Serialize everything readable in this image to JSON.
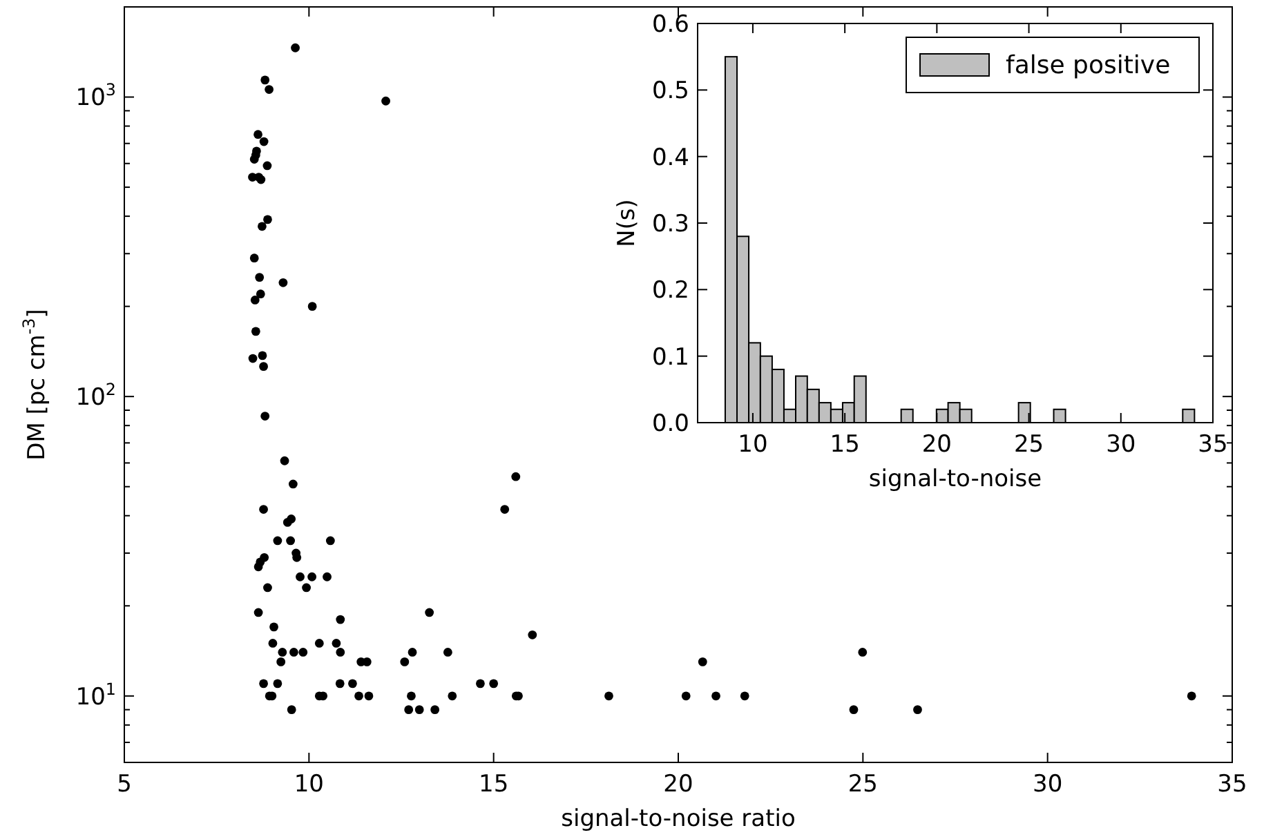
{
  "chart_data": [
    {
      "type": "scatter",
      "xlabel": "signal-to-noise ratio",
      "ylabel": "DM [pc cm$^{-3}$]",
      "log": "y",
      "marker": "circle",
      "grid": false,
      "legend": false,
      "xlim": [
        5,
        35
      ],
      "xticks": [
        5,
        10,
        15,
        20,
        25,
        30,
        35
      ],
      "ylim": [
        6,
        2000
      ],
      "yticks": [
        {
          "value": 6,
          "label": null
        },
        {
          "value": 7,
          "label": null
        },
        {
          "value": 8,
          "label": null
        },
        {
          "value": 9,
          "label": null
        },
        {
          "value": 10,
          "label": "10$^{1}$"
        },
        {
          "value": 20,
          "label": null
        },
        {
          "value": 30,
          "label": null
        },
        {
          "value": 40,
          "label": null
        },
        {
          "value": 50,
          "label": null
        },
        {
          "value": 60,
          "label": null
        },
        {
          "value": 70,
          "label": null
        },
        {
          "value": 80,
          "label": null
        },
        {
          "value": 90,
          "label": null
        },
        {
          "value": 100,
          "label": "10$^{2}$"
        },
        {
          "value": 200,
          "label": null
        },
        {
          "value": 300,
          "label": null
        },
        {
          "value": 400,
          "label": null
        },
        {
          "value": 500,
          "label": null
        },
        {
          "value": 600,
          "label": null
        },
        {
          "value": 700,
          "label": null
        },
        {
          "value": 800,
          "label": null
        },
        {
          "value": 900,
          "label": null
        },
        {
          "value": 1000,
          "label": "10$^{3}$"
        },
        {
          "value": 2000,
          "label": null
        }
      ],
      "series": [
        {
          "color": "#000000",
          "x": [
            9.63,
            8.81,
            8.92,
            12.08,
            8.62,
            8.78,
            8.58,
            8.56,
            8.52,
            8.87,
            8.47,
            8.64,
            8.7,
            8.88,
            8.73,
            8.52,
            8.66,
            9.3,
            8.69,
            8.54,
            10.09,
            8.56,
            8.48,
            8.74,
            8.77,
            8.81,
            9.34,
            9.57,
            8.77,
            9.42,
            9.52,
            9.15,
            9.5,
            10.58,
            9.65,
            9.67,
            8.63,
            8.68,
            8.79,
            9.76,
            10.08,
            10.49,
            9.93,
            8.88,
            8.63,
            10.85,
            9.05,
            9.02,
            10.28,
            10.74,
            9.28,
            9.59,
            9.84,
            10.85,
            9.24,
            11.41,
            11.57,
            8.77,
            9.15,
            10.84,
            11.18,
            8.93,
            9.0,
            10.28,
            10.38,
            11.35,
            11.62,
            9.53,
            12.59,
            12.8,
            13.26,
            12.77,
            12.7,
            12.99,
            13.41,
            13.76,
            13.88,
            14.64,
            15.0,
            15.61,
            15.67,
            16.05,
            18.12,
            20.21,
            20.66,
            21.02,
            21.8,
            24.75,
            24.99,
            26.48,
            33.9,
            15.3,
            15.6
          ],
          "values": [
            1460,
            1140,
            1060,
            970,
            750,
            710,
            660,
            640,
            620,
            590,
            540,
            540,
            530,
            390,
            370,
            290,
            250,
            240,
            220,
            210,
            200,
            165,
            134,
            137,
            126,
            86,
            61,
            51,
            42,
            38,
            39,
            33,
            33,
            33,
            30,
            29,
            27,
            28,
            29,
            25,
            25,
            25,
            23,
            23,
            19,
            18,
            17,
            15,
            15,
            15,
            14,
            14,
            14,
            14,
            13,
            13,
            13,
            11,
            11,
            11,
            11,
            10,
            10,
            10,
            10,
            10,
            10,
            9,
            13,
            14,
            19,
            10,
            9,
            9,
            9,
            14,
            10,
            11,
            11,
            10,
            10,
            16,
            10,
            10,
            13,
            10,
            10,
            9,
            14,
            9,
            10,
            42,
            54
          ]
        }
      ]
    },
    {
      "type": "histogram",
      "xlabel": "signal-to-noise",
      "ylabel": "N(s)",
      "legend": "top right",
      "grid": false,
      "xlim": [
        7,
        35
      ],
      "xticks": [
        10,
        15,
        20,
        25,
        30,
        35
      ],
      "ylim": [
        0,
        0.6
      ],
      "yticks": [
        {
          "value": 0,
          "label": "0.0"
        },
        0.1,
        0.2,
        0.3,
        0.4,
        0.5,
        0.6
      ],
      "bins": [
        8.5,
        9.14,
        9.78,
        10.41,
        11.05,
        11.69,
        12.33,
        12.96,
        13.6,
        14.24,
        14.88,
        15.51,
        16.15,
        16.79,
        17.43,
        18.06,
        18.7,
        19.34,
        19.98,
        20.61,
        21.25,
        21.89,
        22.53,
        23.16,
        23.8,
        24.44,
        25.08,
        25.71,
        26.35,
        26.99,
        27.63,
        28.26,
        28.9,
        29.54,
        30.18,
        30.81,
        31.45,
        32.09,
        32.73,
        33.36,
        34.0
      ],
      "series": [
        {
          "name": "false positive",
          "color": "#bfbfbf",
          "values": [
            0.55,
            0.28,
            0.12,
            0.1,
            0.08,
            0.02,
            0.07,
            0.05,
            0.03,
            0.02,
            0.03,
            0.07,
            0,
            0,
            0,
            0.02,
            0,
            0,
            0.02,
            0.03,
            0.02,
            0,
            0,
            0,
            0,
            0.03,
            0,
            0,
            0.02,
            0,
            0,
            0,
            0,
            0,
            0,
            0,
            0,
            0,
            0,
            0.02
          ]
        }
      ]
    }
  ]
}
